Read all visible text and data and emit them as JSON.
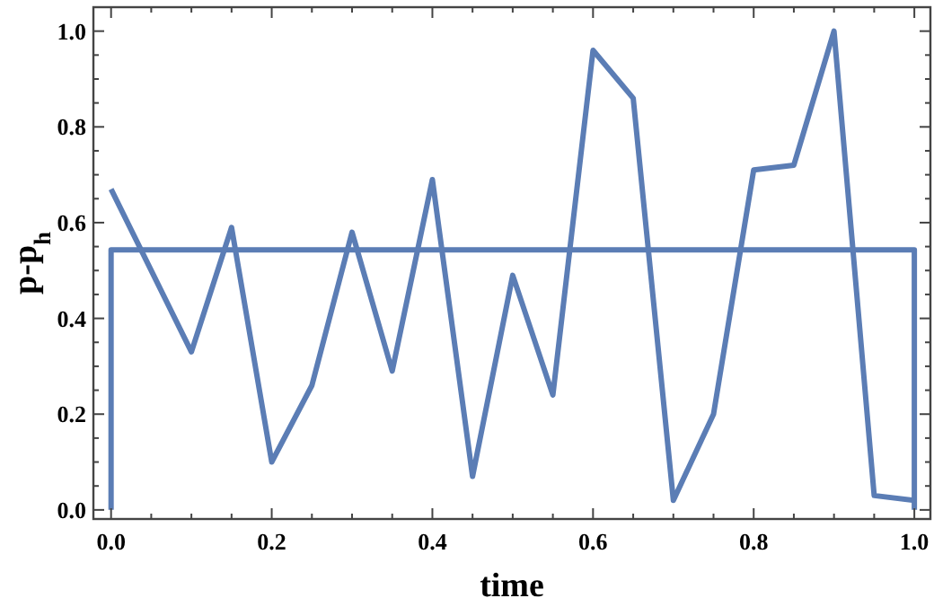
{
  "chart_data": {
    "type": "line",
    "xlabel": "time",
    "ylabel": "p-p$_{h}$",
    "xlim": [
      -0.022,
      1.02
    ],
    "ylim": [
      -0.019,
      1.05
    ],
    "xticks": [
      {
        "value": 0,
        "label": "0.0"
      },
      {
        "value": 0.05,
        "label": null
      },
      {
        "value": 0.1,
        "label": null
      },
      {
        "value": 0.15,
        "label": null
      },
      0.2,
      {
        "value": 0.25,
        "label": null
      },
      {
        "value": 0.3,
        "label": null
      },
      {
        "value": 0.35,
        "label": null
      },
      0.4,
      {
        "value": 0.45,
        "label": null
      },
      {
        "value": 0.5,
        "label": null
      },
      {
        "value": 0.55,
        "label": null
      },
      0.6,
      {
        "value": 0.65,
        "label": null
      },
      {
        "value": 0.7,
        "label": null
      },
      {
        "value": 0.75,
        "label": null
      },
      0.8,
      {
        "value": 0.85,
        "label": null
      },
      {
        "value": 0.9,
        "label": null
      },
      {
        "value": 0.95,
        "label": null
      },
      {
        "value": 1,
        "label": "1.0"
      }
    ],
    "yticks": [
      {
        "value": 0,
        "label": "0.0"
      },
      {
        "value": 0.05,
        "label": null
      },
      {
        "value": 0.1,
        "label": null
      },
      {
        "value": 0.15,
        "label": null
      },
      0.2,
      {
        "value": 0.25,
        "label": null
      },
      {
        "value": 0.3,
        "label": null
      },
      {
        "value": 0.35,
        "label": null
      },
      0.4,
      {
        "value": 0.45,
        "label": null
      },
      {
        "value": 0.5,
        "label": null
      },
      {
        "value": 0.55,
        "label": null
      },
      0.6,
      {
        "value": 0.65,
        "label": null
      },
      {
        "value": 0.7,
        "label": null
      },
      {
        "value": 0.75,
        "label": null
      },
      0.8,
      {
        "value": 0.85,
        "label": null
      },
      {
        "value": 0.9,
        "label": null
      },
      {
        "value": 0.95,
        "label": null
      },
      {
        "value": 1,
        "label": "1.0"
      }
    ],
    "grid": false,
    "marker": "none",
    "line_style": "solid",
    "series": [
      {
        "color": "#5b7db5",
        "x": [
          0,
          0.1,
          0.15,
          0.2,
          0.25,
          0.3,
          0.35,
          0.4,
          0.45,
          0.5,
          0.55,
          0.6,
          0.65,
          0.7,
          0.75,
          0.8,
          0.85,
          0.9,
          0.95,
          1.0
        ],
        "values": [
          0.67,
          0.33,
          0.59,
          0.1,
          0.26,
          0.58,
          0.29,
          0.69,
          0.07,
          0.49,
          0.24,
          0.96,
          0.86,
          0.02,
          0.2,
          0.71,
          0.72,
          1.0,
          0.03,
          0.02
        ]
      },
      {
        "color": "#5b7db5",
        "x": [
          0,
          0,
          1,
          1
        ],
        "values": [
          0,
          0.543,
          0.543,
          0
        ]
      }
    ]
  }
}
